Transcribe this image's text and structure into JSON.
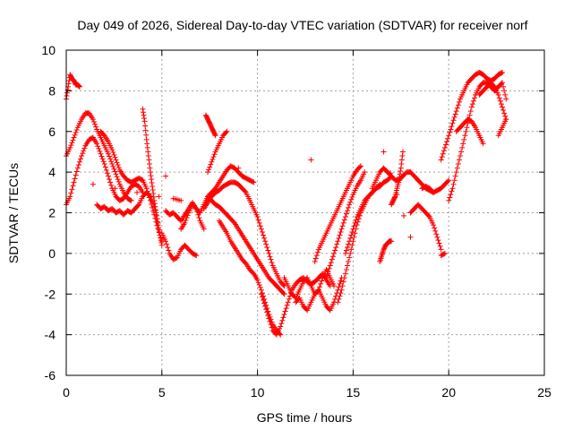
{
  "chart_data": {
    "type": "scatter",
    "title": "Day 049 of 2026, Sidereal Day-to-day VTEC variation (SDTVAR) for receiver norf",
    "xlabel": "GPS time / hours",
    "ylabel": "SDTVAR / TECUs",
    "xlim": [
      0,
      25
    ],
    "ylim": [
      -6,
      10
    ],
    "xticks": [
      0,
      5,
      10,
      15,
      20,
      25
    ],
    "yticks": [
      -6,
      -4,
      -2,
      0,
      2,
      4,
      6,
      8,
      10
    ],
    "xtick_labels": [
      "0",
      "5",
      "10",
      "15",
      "20",
      "25"
    ],
    "ytick_labels": [
      "-6",
      "-4",
      "-2",
      "0",
      "2",
      "4",
      "6",
      "8",
      "10"
    ],
    "grid": true,
    "marker": "+",
    "marker_color": "#ff0000",
    "series": [
      {
        "name": "t1",
        "x": [
          0.0,
          0.1,
          0.2,
          0.3,
          0.4,
          0.5,
          0.6,
          0.7
        ],
        "y": [
          7.6,
          8.2,
          8.8,
          8.6,
          8.5,
          8.3,
          8.3,
          8.2
        ]
      },
      {
        "name": "t2",
        "x": [
          0.0,
          0.2,
          0.4,
          0.6,
          0.8,
          1.0,
          1.2,
          1.4,
          1.6,
          1.8,
          2.0,
          2.2,
          2.4,
          2.6,
          2.8,
          3.0,
          3.2,
          3.4
        ],
        "y": [
          4.8,
          5.2,
          5.7,
          6.2,
          6.6,
          6.9,
          6.9,
          6.6,
          6.1,
          5.7,
          5.3,
          4.9,
          4.4,
          3.9,
          3.4,
          3.0,
          2.7,
          2.6
        ]
      },
      {
        "name": "t3",
        "x": [
          0.0,
          0.2,
          0.4,
          0.6,
          0.8,
          1.0,
          1.2,
          1.4,
          1.6,
          1.8,
          2.0,
          2.2,
          2.4,
          2.6,
          2.8,
          3.0,
          3.2,
          3.4,
          3.6,
          3.8,
          4.0
        ],
        "y": [
          2.4,
          2.8,
          3.5,
          4.2,
          4.8,
          5.3,
          5.6,
          5.7,
          5.4,
          4.9,
          4.4,
          3.8,
          3.2,
          2.8,
          2.6,
          2.7,
          3.0,
          3.3,
          3.4,
          3.3,
          3.0
        ]
      },
      {
        "name": "t4",
        "x": [
          1.6,
          1.8,
          2.0,
          2.2,
          2.4,
          2.6,
          2.8,
          3.0,
          3.2,
          3.4,
          3.6,
          3.8,
          4.0,
          4.2,
          4.4,
          4.6,
          4.8
        ],
        "y": [
          2.4,
          2.2,
          2.3,
          2.1,
          2.2,
          2.0,
          2.1,
          1.9,
          2.1,
          2.0,
          2.2,
          2.4,
          2.8,
          3.0,
          2.8,
          2.3,
          1.5
        ]
      },
      {
        "name": "t5",
        "x": [
          1.8,
          2.0,
          2.2,
          2.4,
          2.6,
          2.8,
          3.0,
          3.2,
          3.4,
          3.6,
          3.8,
          4.0,
          4.2,
          4.4,
          4.6,
          4.8,
          5.0
        ],
        "y": [
          6.0,
          5.8,
          5.5,
          5.1,
          4.6,
          4.1,
          3.8,
          3.6,
          3.5,
          3.6,
          3.7,
          3.6,
          3.2,
          2.6,
          1.9,
          1.2,
          0.6
        ]
      },
      {
        "name": "t6",
        "x": [
          4.0,
          4.1,
          4.2,
          4.3,
          4.4,
          4.5,
          4.6,
          4.7,
          4.8,
          4.9,
          5.0
        ],
        "y": [
          7.1,
          6.5,
          5.6,
          4.8,
          4.0,
          3.3,
          2.6,
          2.0,
          1.4,
          0.9,
          0.4
        ]
      },
      {
        "name": "t7",
        "x": [
          5.2,
          5.4,
          5.6,
          5.8,
          6.0,
          6.2,
          6.4,
          6.6,
          6.8,
          7.0,
          7.2
        ],
        "y": [
          2.1,
          1.9,
          2.0,
          1.8,
          1.6,
          1.9,
          2.2,
          2.5,
          2.2,
          1.6,
          1.2
        ]
      },
      {
        "name": "t8",
        "x": [
          5.0,
          5.2,
          5.4,
          5.6,
          5.8,
          6.0,
          6.2,
          6.4,
          6.6,
          6.8
        ],
        "y": [
          1.0,
          0.6,
          0.0,
          -0.3,
          -0.2,
          0.2,
          0.4,
          0.2,
          0.0,
          -0.1
        ]
      },
      {
        "name": "t9",
        "x": [
          6.0,
          6.2,
          6.4,
          6.6,
          6.8,
          7.0,
          7.2,
          7.4,
          7.6,
          7.8,
          8.0,
          8.2,
          8.4,
          8.6,
          8.8,
          9.0,
          9.2,
          9.4,
          9.6,
          9.8
        ],
        "y": [
          1.2,
          1.5,
          2.0,
          2.4,
          2.2,
          2.0,
          2.4,
          2.8,
          3.0,
          3.2,
          3.5,
          3.8,
          4.1,
          4.3,
          4.2,
          4.0,
          3.8,
          3.7,
          3.6,
          3.5
        ]
      },
      {
        "name": "t10",
        "x": [
          7.4,
          7.6,
          7.8,
          8.0,
          8.2,
          8.4,
          8.6,
          8.8,
          9.0,
          9.2,
          9.4,
          9.6,
          9.8,
          10.0,
          10.2,
          10.4,
          10.6,
          10.8,
          11.0,
          11.2,
          11.4
        ],
        "y": [
          2.8,
          2.6,
          2.4,
          2.3,
          2.1,
          1.9,
          1.7,
          1.5,
          1.2,
          0.9,
          0.6,
          0.3,
          0.0,
          -0.3,
          -0.6,
          -0.9,
          -1.2,
          -1.4,
          -1.6,
          -1.8,
          -2.0
        ]
      },
      {
        "name": "t11",
        "x": [
          7.2,
          7.4,
          7.6,
          7.8,
          8.0,
          8.2,
          8.4,
          8.6,
          8.8,
          9.0,
          9.2,
          9.4,
          9.6,
          9.8,
          10.0,
          10.2,
          10.4,
          10.6,
          10.8,
          11.0,
          11.2,
          11.4
        ],
        "y": [
          2.2,
          2.5,
          2.8,
          3.0,
          3.1,
          3.3,
          3.4,
          3.5,
          3.5,
          3.4,
          3.2,
          3.0,
          2.6,
          2.2,
          1.8,
          1.2,
          0.6,
          0.0,
          -0.6,
          -1.0,
          -1.4,
          -1.6
        ]
      },
      {
        "name": "t12",
        "x": [
          7.4,
          7.6,
          7.8,
          8.0,
          8.2,
          8.4
        ],
        "y": [
          4.0,
          4.5,
          5.0,
          5.4,
          5.8,
          6.0
        ]
      },
      {
        "name": "t13",
        "x": [
          7.3,
          7.4,
          7.5,
          7.6,
          7.7,
          7.8
        ],
        "y": [
          6.8,
          6.6,
          6.4,
          6.2,
          6.0,
          5.8
        ]
      },
      {
        "name": "t14",
        "x": [
          8.0,
          8.2,
          8.4,
          8.6,
          8.8,
          9.0,
          9.2,
          9.4,
          9.6,
          9.8,
          10.0,
          10.2,
          10.4,
          10.6,
          10.8,
          11.0,
          11.2
        ],
        "y": [
          1.6,
          1.3,
          1.0,
          0.6,
          0.3,
          0.0,
          -0.3,
          -0.5,
          -0.8,
          -1.0,
          -1.3,
          -1.8,
          -2.4,
          -3.0,
          -3.5,
          -3.8,
          -4.0
        ]
      },
      {
        "name": "t15",
        "x": [
          10.2,
          10.4,
          10.6,
          10.8,
          11.0,
          11.2,
          11.4,
          11.6,
          11.8,
          12.0,
          12.2,
          12.4,
          12.6,
          12.8,
          13.0,
          13.2,
          13.4,
          13.6,
          13.8
        ],
        "y": [
          -2.0,
          -2.6,
          -3.2,
          -3.8,
          -4.0,
          -3.6,
          -3.0,
          -2.4,
          -1.8,
          -1.5,
          -1.3,
          -1.2,
          -1.4,
          -1.5,
          -1.4,
          -1.2,
          -1.0,
          -1.3,
          -1.6
        ]
      },
      {
        "name": "t16",
        "x": [
          11.4,
          11.6,
          11.8,
          12.0,
          12.2,
          12.4,
          12.6,
          12.8,
          13.0,
          13.2,
          13.4,
          13.6,
          13.8,
          14.0
        ],
        "y": [
          -1.2,
          -1.6,
          -2.0,
          -2.2,
          -1.8,
          -1.4,
          -1.2,
          -1.6,
          -2.0,
          -1.8,
          -1.2,
          -0.8,
          -1.2,
          -1.6
        ]
      },
      {
        "name": "t17",
        "x": [
          12.0,
          12.2,
          12.4,
          12.6,
          12.8,
          13.0,
          13.2,
          13.4,
          13.6,
          13.8,
          14.0,
          14.2,
          14.4
        ],
        "y": [
          -2.4,
          -2.2,
          -2.6,
          -2.8,
          -2.4,
          -2.0,
          -1.8,
          -2.2,
          -2.6,
          -2.8,
          -2.4,
          -1.8,
          -1.2
        ]
      },
      {
        "name": "t18",
        "x": [
          13.0,
          13.2,
          13.4,
          13.6,
          13.8,
          14.0,
          14.2,
          14.4,
          14.6,
          14.8,
          15.0,
          15.2,
          15.4
        ],
        "y": [
          -0.4,
          0.2,
          0.6,
          1.0,
          1.4,
          1.8,
          2.2,
          2.6,
          3.0,
          3.4,
          3.8,
          4.1,
          4.3
        ]
      },
      {
        "name": "t19",
        "x": [
          13.6,
          13.8,
          14.0,
          14.2,
          14.4,
          14.6,
          14.8,
          15.0,
          15.2,
          15.4,
          15.6
        ],
        "y": [
          -1.2,
          -0.6,
          0.0,
          0.6,
          1.2,
          1.8,
          2.4,
          2.9,
          3.3,
          3.6,
          4.0
        ]
      },
      {
        "name": "t20",
        "x": [
          14.2,
          14.4,
          14.6,
          14.8,
          15.0,
          15.2,
          15.4,
          15.6,
          15.8,
          16.0,
          16.2,
          16.4,
          16.6,
          16.8,
          17.0
        ],
        "y": [
          -2.4,
          -1.8,
          -1.0,
          -0.2,
          0.6,
          1.4,
          2.0,
          2.4,
          2.8,
          3.0,
          3.2,
          3.3,
          3.5,
          3.6,
          3.8
        ]
      },
      {
        "name": "t21",
        "x": [
          14.6,
          14.8,
          15.0,
          15.2,
          15.4,
          15.6,
          15.8,
          16.0,
          16.2,
          16.4
        ],
        "y": [
          0.0,
          0.6,
          1.2,
          1.8,
          2.2,
          2.6,
          2.8,
          3.0,
          3.2,
          3.4
        ]
      },
      {
        "name": "t22",
        "x": [
          16.0,
          16.2,
          16.4,
          16.6,
          16.8,
          17.0,
          17.2,
          17.4,
          17.6,
          17.8,
          18.0,
          18.2,
          18.4,
          18.6,
          18.8,
          19.0,
          19.2
        ],
        "y": [
          3.2,
          3.6,
          4.0,
          4.2,
          4.0,
          3.8,
          3.6,
          3.6,
          3.8,
          4.0,
          4.0,
          3.8,
          3.6,
          3.4,
          3.2,
          3.1,
          3.0
        ]
      },
      {
        "name": "t23",
        "x": [
          16.4,
          16.5,
          16.6,
          16.7,
          16.8,
          16.9,
          17.0
        ],
        "y": [
          -0.4,
          -0.1,
          0.2,
          0.4,
          0.5,
          0.6,
          0.6
        ]
      },
      {
        "name": "t24",
        "x": [
          17.0,
          17.1,
          17.2,
          17.3,
          17.4,
          17.5,
          17.6
        ],
        "y": [
          2.4,
          2.6,
          2.8,
          3.2,
          3.6,
          4.2,
          5.0
        ]
      },
      {
        "name": "t25",
        "x": [
          18.0,
          18.2,
          18.4,
          18.6,
          18.8,
          19.0,
          19.2,
          19.4,
          19.6
        ],
        "y": [
          2.0,
          2.2,
          2.4,
          2.2,
          2.0,
          1.8,
          1.4,
          0.8,
          0.2
        ]
      },
      {
        "name": "t26",
        "x": [
          18.6,
          18.8,
          19.0,
          19.2,
          19.4,
          19.6,
          19.8,
          20.0
        ],
        "y": [
          3.2,
          3.3,
          3.2,
          3.0,
          3.1,
          3.2,
          3.4,
          3.6
        ]
      },
      {
        "name": "t27",
        "x": [
          19.6,
          19.8,
          20.0,
          20.2,
          20.4,
          20.6,
          20.8,
          21.0,
          21.2,
          21.4,
          21.6,
          21.8,
          22.0,
          22.2,
          22.4,
          22.6,
          22.8
        ],
        "y": [
          4.6,
          5.2,
          5.8,
          6.4,
          7.0,
          7.6,
          8.0,
          8.4,
          8.6,
          8.8,
          8.9,
          8.8,
          8.6,
          8.5,
          8.6,
          8.8,
          8.9
        ]
      },
      {
        "name": "t28",
        "x": [
          20.0,
          20.2,
          20.4,
          20.6,
          20.8,
          21.0,
          21.2,
          21.4,
          21.6,
          21.8,
          22.0,
          22.2,
          22.4,
          22.6,
          22.8,
          23.0
        ],
        "y": [
          2.6,
          3.2,
          4.0,
          4.8,
          5.6,
          6.4,
          7.2,
          7.8,
          8.2,
          8.4,
          8.4,
          8.2,
          8.0,
          8.2,
          8.4,
          7.6
        ]
      },
      {
        "name": "t29",
        "x": [
          20.4,
          20.6,
          20.8,
          21.0,
          21.2,
          21.4,
          21.6,
          21.8
        ],
        "y": [
          6.0,
          6.2,
          6.4,
          6.6,
          6.5,
          6.2,
          5.8,
          5.4
        ]
      },
      {
        "name": "t30",
        "x": [
          21.6,
          21.8,
          22.0,
          22.2,
          22.4,
          22.6,
          22.8,
          23.0
        ],
        "y": [
          7.8,
          8.0,
          8.2,
          8.4,
          8.2,
          7.8,
          7.2,
          6.6
        ]
      },
      {
        "name": "t31",
        "x": [
          22.6,
          22.8,
          23.0
        ],
        "y": [
          5.8,
          6.2,
          6.6
        ]
      },
      {
        "name": "t32",
        "x": [
          19.6,
          19.8
        ],
        "y": [
          -0.1,
          0.0
        ]
      },
      {
        "name": "t33",
        "x": [
          5.6,
          6.0,
          1.4,
          16.6,
          18.0
        ],
        "y": [
          2.7,
          2.6,
          3.4,
          5.0,
          0.8
        ]
      }
    ]
  }
}
